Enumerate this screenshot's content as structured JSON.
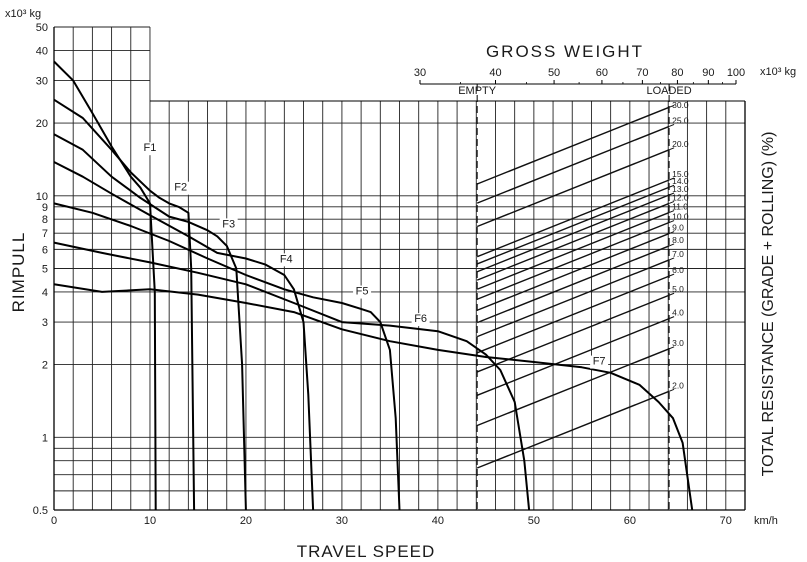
{
  "chart_data": {
    "type": "line",
    "title": "",
    "xlabel": "TRAVEL SPEED",
    "x_unit": "km/h",
    "ylabel": "RIMPULL",
    "y_unit": "x10³ kg",
    "y_scale": "log",
    "xlim": [
      0,
      72
    ],
    "ylim": [
      0.5,
      50
    ],
    "x_ticks": [
      0,
      10,
      20,
      30,
      40,
      50,
      60,
      70
    ],
    "y_ticks": [
      0.5,
      1,
      2,
      3,
      4,
      5,
      6,
      7,
      8,
      9,
      10,
      20,
      30,
      40,
      50
    ],
    "grid": true,
    "gross_weight_axis": {
      "title": "GROSS WEIGHT",
      "unit": "x10³ kg",
      "scale": "log",
      "ticks": [
        30,
        40,
        50,
        60,
        70,
        80,
        90,
        100
      ],
      "empty_label": "EMPTY",
      "loaded_label": "LOADED",
      "empty_value": 37.3,
      "loaded_value": 77.5
    },
    "resistance_axis": {
      "title": "TOTAL RESISTANCE (GRADE + ROLLING)  (%)",
      "values": [
        30.0,
        25.0,
        20.0,
        15.0,
        14.0,
        13.0,
        12.0,
        11.0,
        10.0,
        9.0,
        8.0,
        7.0,
        6.0,
        5.0,
        4.0,
        3.0,
        2.0
      ]
    },
    "series": [
      {
        "name": "F1",
        "label_at": [
          10,
          15.3
        ],
        "x": [
          0,
          2,
          4,
          6,
          8,
          9,
          10,
          10.5,
          10.6
        ],
        "y": [
          36,
          30,
          22,
          16,
          12,
          10.8,
          9.3,
          4,
          0.5
        ]
      },
      {
        "name": "F2",
        "label_at": [
          13.2,
          10.5
        ],
        "x": [
          0,
          3,
          6,
          8,
          10,
          11,
          12,
          13,
          14,
          14.3,
          14.6
        ],
        "y": [
          25,
          21,
          15.5,
          12.5,
          10.5,
          9.8,
          9.3,
          9,
          8.5,
          5,
          0.5
        ]
      },
      {
        "name": "F3",
        "label_at": [
          18.2,
          7.4
        ],
        "x": [
          0,
          3,
          6,
          9,
          12,
          14,
          16,
          17,
          18,
          19,
          19.6,
          20
        ],
        "y": [
          18,
          15.5,
          12,
          9.8,
          8.2,
          7.8,
          7.2,
          6.8,
          6.2,
          5,
          2,
          0.5
        ]
      },
      {
        "name": "F4",
        "label_at": [
          24.2,
          5.3
        ],
        "x": [
          0,
          3,
          6,
          10,
          14,
          17,
          20,
          22,
          24,
          25,
          26,
          26.5,
          27
        ],
        "y": [
          13.8,
          12,
          10.2,
          8.3,
          6.8,
          5.8,
          5.5,
          5.2,
          4.7,
          4.1,
          3,
          1.5,
          0.5
        ]
      },
      {
        "name": "F5",
        "label_at": [
          32.1,
          3.9
        ],
        "x": [
          0,
          4,
          8,
          12,
          16,
          20,
          24,
          27,
          30,
          32,
          33,
          34,
          35,
          35.6,
          36
        ],
        "y": [
          9.3,
          8.5,
          7.5,
          6.5,
          5.5,
          4.7,
          4.1,
          3.8,
          3.6,
          3.4,
          3.3,
          3,
          2.3,
          1.2,
          0.5
        ]
      },
      {
        "name": "F6",
        "label_at": [
          38.2,
          3
        ],
        "x": [
          0,
          5,
          10,
          15,
          20,
          25,
          30,
          35,
          40,
          43,
          45,
          46.5,
          48,
          49,
          49.5
        ],
        "y": [
          6.4,
          5.8,
          5.3,
          4.8,
          4.3,
          3.6,
          3,
          2.9,
          2.75,
          2.5,
          2.2,
          1.9,
          1.4,
          0.8,
          0.5
        ]
      },
      {
        "name": "F7",
        "label_at": [
          56.8,
          2
        ],
        "x": [
          0,
          5,
          10,
          15,
          20,
          25,
          30,
          35,
          40,
          45,
          50,
          55,
          58,
          61,
          63,
          64.5,
          65.5,
          66.5
        ],
        "y": [
          4.3,
          4,
          4.1,
          3.9,
          3.6,
          3.3,
          2.8,
          2.5,
          2.3,
          2.15,
          2.05,
          1.95,
          1.85,
          1.65,
          1.4,
          1.2,
          0.95,
          0.5
        ]
      }
    ]
  }
}
